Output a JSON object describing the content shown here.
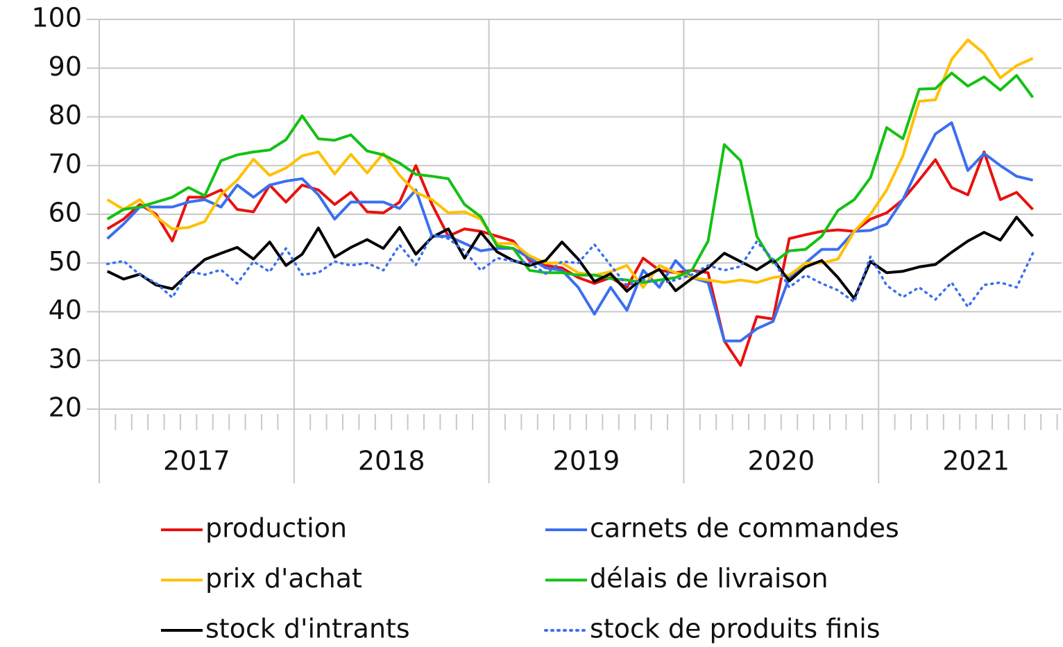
{
  "chart_data": {
    "type": "line",
    "groups": [
      "2017",
      "2018",
      "2019",
      "2020",
      "2021"
    ],
    "ylim": [
      20,
      100
    ],
    "yticks": [
      20,
      30,
      40,
      50,
      60,
      70,
      80,
      90,
      100
    ],
    "grid": true,
    "series": [
      {
        "name": "production",
        "color": "#e8110f",
        "values": [
          57,
          59,
          62,
          60,
          54.5,
          63.5,
          63.5,
          65,
          61,
          60.5,
          66,
          62.5,
          66,
          65,
          62,
          64.5,
          60.5,
          60.3,
          62.5,
          70,
          62,
          55.5,
          57,
          56.5,
          55.5,
          54.5,
          50.5,
          49.5,
          49,
          47,
          45.8,
          47,
          45,
          51,
          48.5,
          48,
          48.5,
          48,
          34,
          29,
          39,
          38.5,
          55,
          55.8,
          56.5,
          56.8,
          56.5,
          59,
          60.3,
          63,
          67,
          71.2,
          65.5,
          64,
          72.8,
          63,
          64.5,
          61
        ]
      },
      {
        "name": "carnets de commandes",
        "color": "#3b6ff0",
        "values": [
          55,
          58,
          61.5,
          61.5,
          61.5,
          62.5,
          63,
          61.5,
          66,
          63.5,
          66,
          66.8,
          67.3,
          64,
          59,
          62.5,
          62.5,
          62.5,
          61.2,
          65,
          55.5,
          55.5,
          54,
          52.5,
          53,
          53,
          51,
          49,
          48.5,
          45,
          39.5,
          45,
          40.3,
          48.5,
          45,
          50.5,
          47,
          46,
          34,
          34,
          36.5,
          38,
          47,
          50,
          52.8,
          52.8,
          56.5,
          56.7,
          58,
          63,
          70,
          76.5,
          78.8,
          69,
          72.5,
          70,
          67.8,
          67
        ]
      },
      {
        "name": "prix d'achat",
        "color": "#ffc000",
        "values": [
          63,
          61,
          63,
          59.5,
          57,
          57.3,
          58.5,
          64,
          67,
          71.3,
          68,
          69.5,
          72,
          72.8,
          68.3,
          72.3,
          68.5,
          72.5,
          68,
          64.5,
          63,
          60.3,
          60.5,
          59,
          54,
          54,
          51.5,
          50,
          50,
          48,
          47.5,
          48.2,
          49.5,
          45,
          49.5,
          48,
          47,
          46.5,
          46,
          46.5,
          46,
          47,
          47.5,
          50,
          50,
          50.8,
          56.5,
          60,
          65,
          72,
          83.2,
          83.5,
          91.8,
          95.8,
          93,
          88,
          90.5,
          92
        ]
      },
      {
        "name": "délais de livraison",
        "color": "#14c114",
        "values": [
          59,
          61,
          61.5,
          62.5,
          63.5,
          65.5,
          63.8,
          71,
          72.2,
          72.8,
          73.2,
          75.3,
          80.2,
          75.5,
          75.2,
          76.3,
          73,
          72.2,
          70.5,
          68.2,
          67.8,
          67.3,
          62,
          59.5,
          53.5,
          53,
          48.5,
          48,
          48,
          47.5,
          47.5,
          46.8,
          46.5,
          46,
          46.5,
          47,
          48.5,
          54.5,
          74.3,
          71,
          55.5,
          50,
          52.5,
          52.8,
          55.5,
          60.8,
          63,
          67.5,
          77.8,
          75.5,
          85.7,
          85.8,
          89,
          86.3,
          88.2,
          85.5,
          88.5,
          84
        ]
      },
      {
        "name": "stock d'intrants",
        "color": "#000000",
        "values": [
          48.3,
          46.7,
          47.7,
          45.5,
          44.7,
          47.8,
          50.7,
          52,
          53.2,
          50.8,
          54.3,
          49.5,
          51.8,
          57.2,
          51.2,
          53.2,
          54.8,
          53,
          57.3,
          51.8,
          55.3,
          57,
          51,
          56.3,
          52.3,
          50.5,
          49.5,
          50.5,
          54.3,
          50.8,
          46.2,
          47.8,
          44.2,
          47,
          48.7,
          44.3,
          46.8,
          49,
          52,
          50.3,
          48.6,
          50.7,
          46.3,
          49.2,
          50.5,
          47,
          42.7,
          50.3,
          48,
          48.3,
          49.2,
          49.7,
          52.2,
          54.5,
          56.3,
          54.7,
          59.4,
          55.5
        ]
      },
      {
        "name": "stock de produits finis",
        "color": "#3b6ff0",
        "dash": "dotted",
        "values": [
          49.8,
          50.4,
          47.6,
          45.9,
          42.9,
          48.3,
          47.6,
          48.6,
          45.8,
          50.3,
          48.2,
          53,
          47.6,
          48,
          50.3,
          49.5,
          50,
          48.5,
          53.7,
          49.6,
          55.8,
          55,
          52.5,
          48.5,
          51,
          50.4,
          50,
          47.8,
          50.3,
          50,
          53.8,
          49.5,
          45.4,
          46.6,
          45.8,
          46.5,
          47.6,
          49.5,
          48.5,
          49.3,
          54.4,
          50.7,
          45,
          47.5,
          45.8,
          44.4,
          42,
          51.3,
          45.4,
          43,
          45,
          42.5,
          46,
          41,
          45.5,
          46,
          45,
          52
        ]
      }
    ]
  }
}
